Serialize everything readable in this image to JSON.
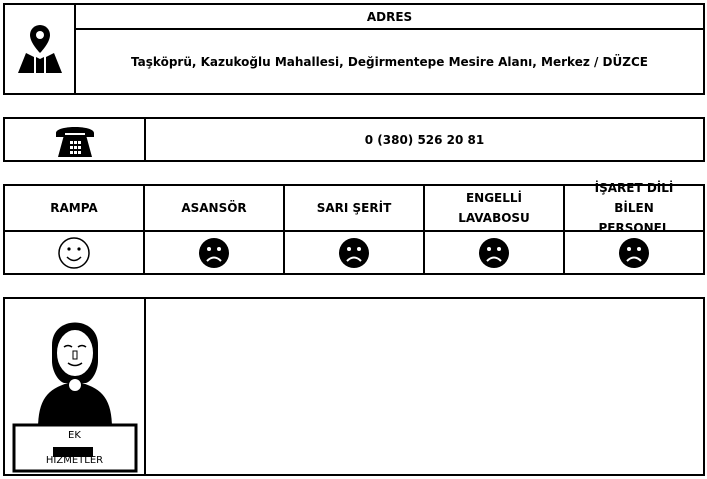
{
  "address": {
    "title": "ADRES",
    "value": "Taşköprü, Kazukoğlu Mahallesi, Değirmentepe Mesire Alanı, Merkez / DÜZCE",
    "icon": "map-pin-icon"
  },
  "phone": {
    "value": "0 (380) 526 20 81",
    "icon": "telephone-icon"
  },
  "accessibility": [
    {
      "label": "RAMPA",
      "status": "smile"
    },
    {
      "label": "ASANSÖR",
      "status": "frown"
    },
    {
      "label": "SARI ŞERİT",
      "status": "frown"
    },
    {
      "label": "ENGELLİ LAVABOSU",
      "status": "frown"
    },
    {
      "label": "İŞARET DİLİ BİLEN PERSONEL",
      "status": "frown"
    }
  ],
  "extra_services": {
    "label_top": "EK",
    "label_bottom": "HİZMETLER",
    "content": ""
  }
}
